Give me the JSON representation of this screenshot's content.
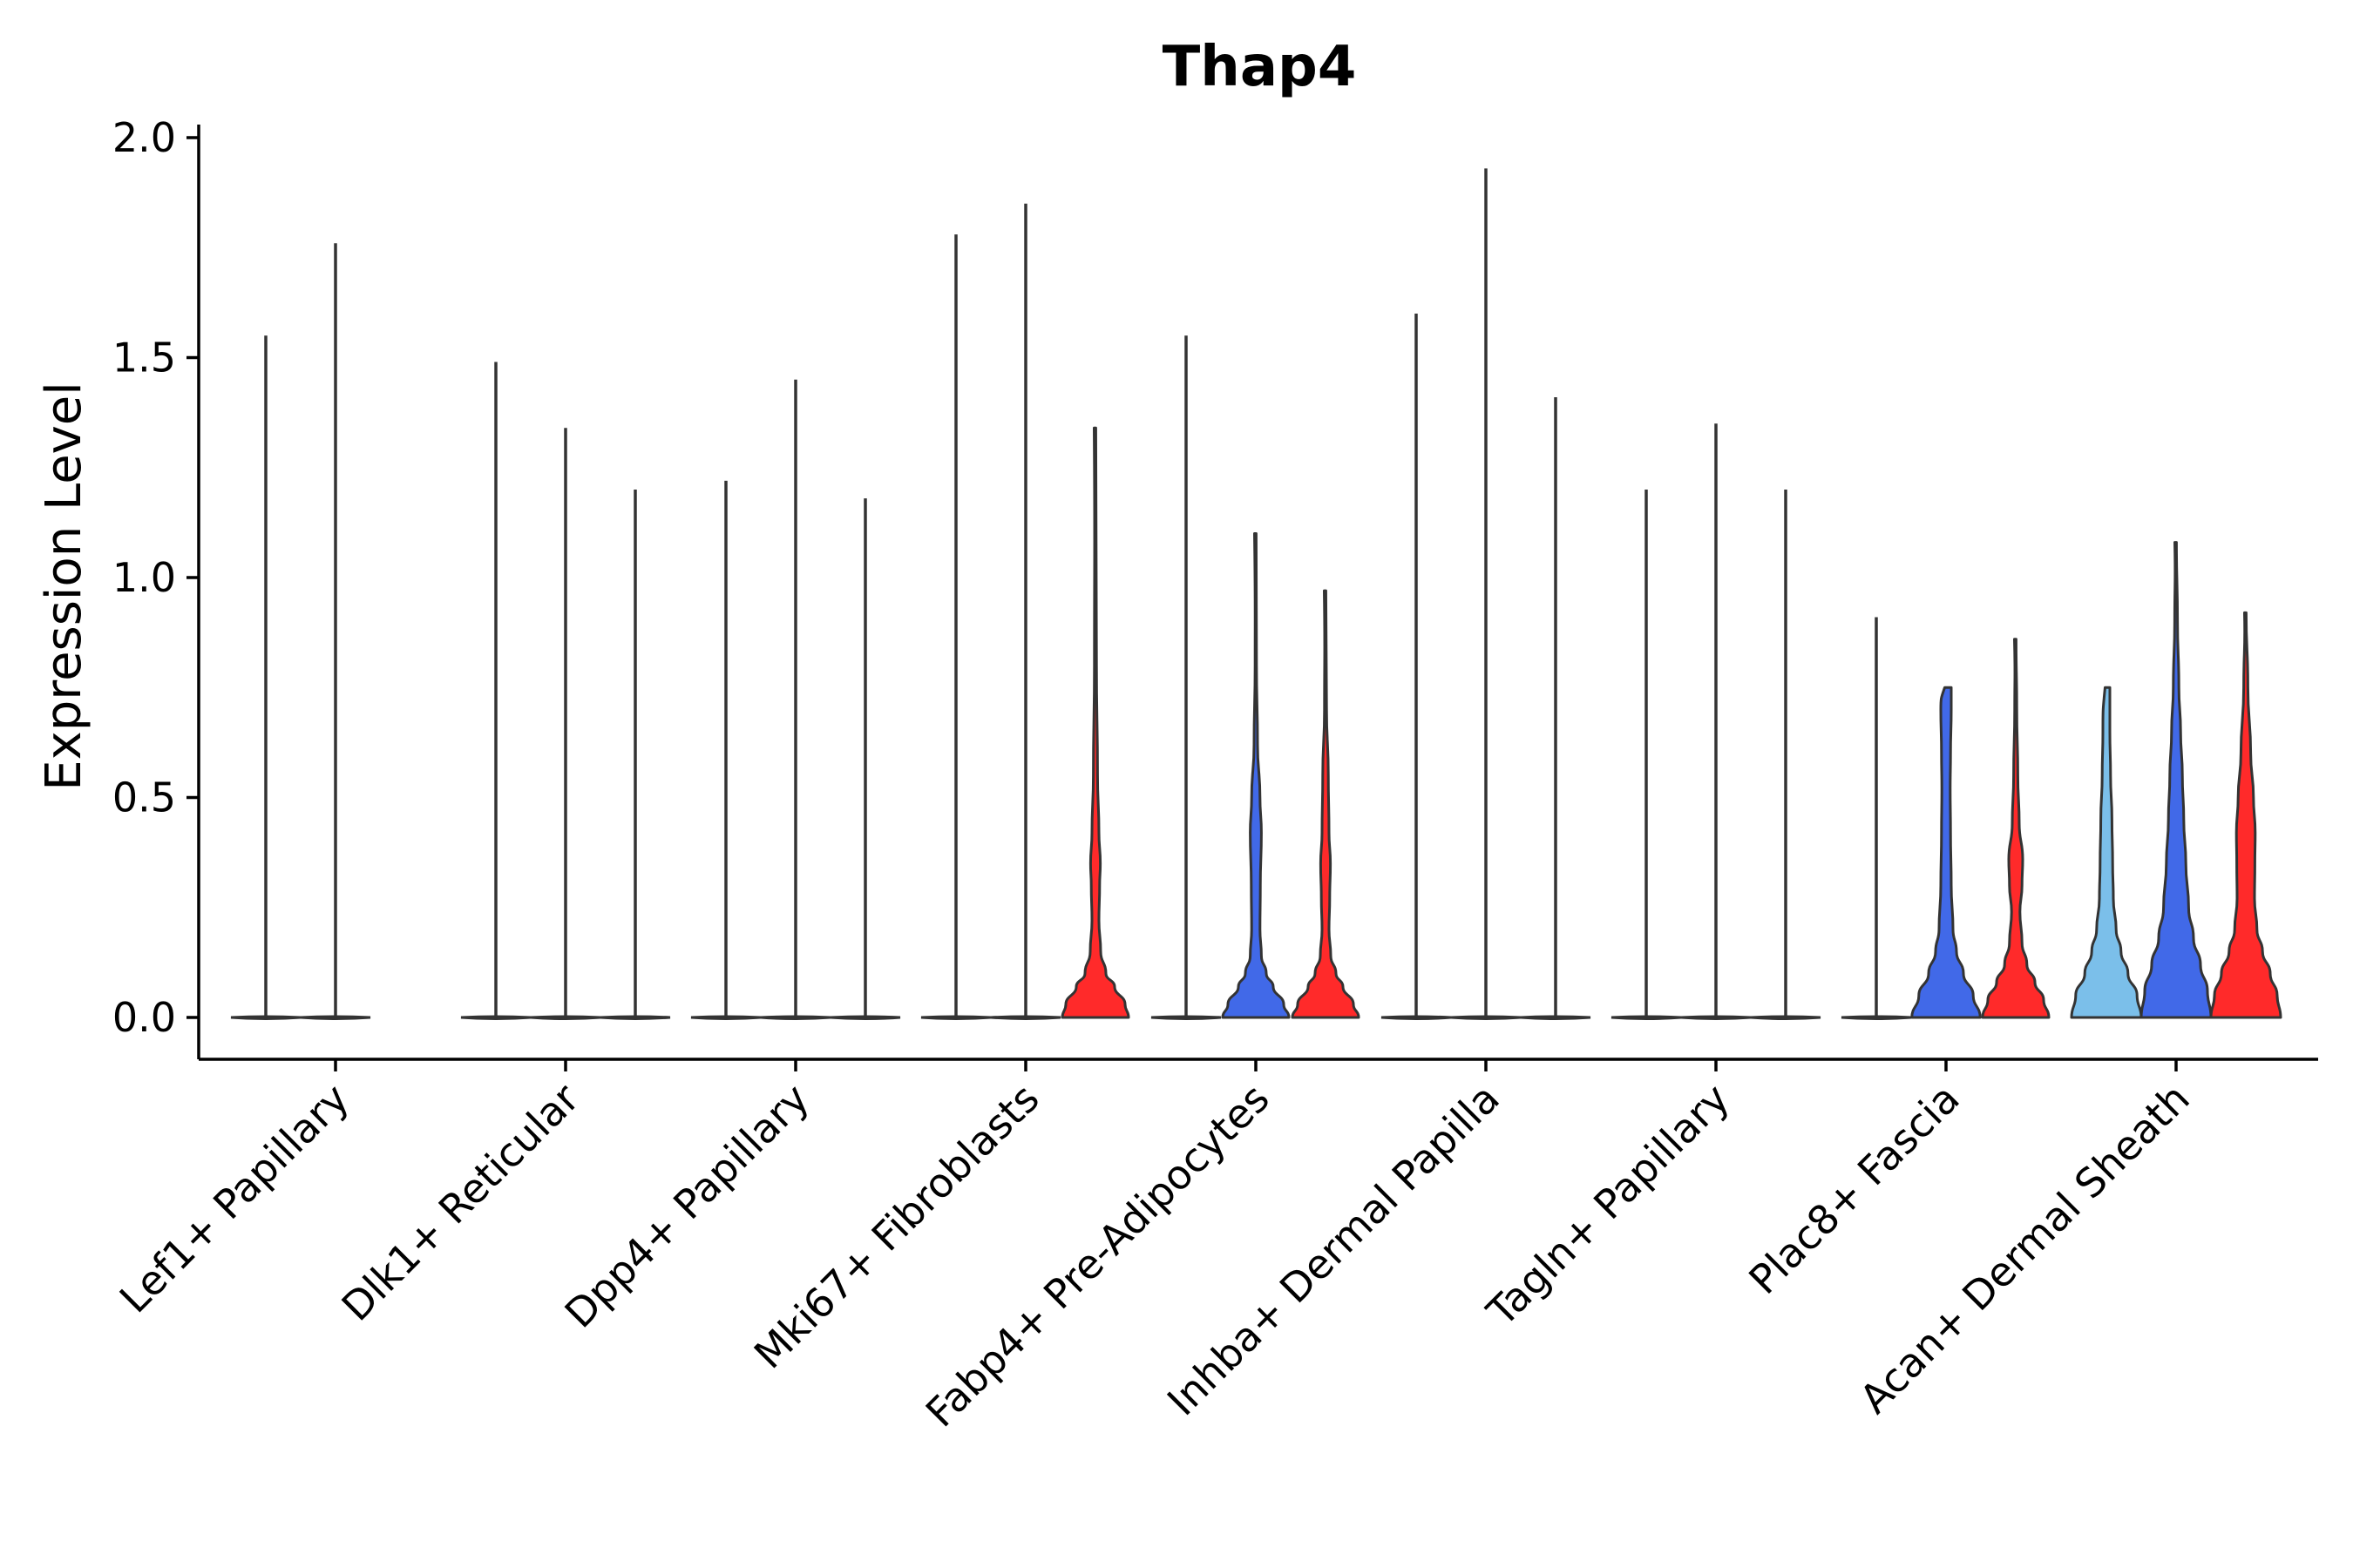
{
  "chart_data": {
    "type": "violin",
    "title": "Thap4",
    "xlabel": "",
    "ylabel": "Expression Level",
    "ylim": [
      -0.1,
      2.03
    ],
    "yticks": [
      "0.0",
      "0.5",
      "1.0",
      "1.5",
      "2.0"
    ],
    "ytick_values": [
      0,
      0.5,
      1.0,
      1.5,
      2.0
    ],
    "categories": [
      "Lef1+ Papillary",
      "Dlk1+ Reticular",
      "Dpp4+ Papillary",
      "Mki67+ Fibroblasts",
      "Fabp4+ Pre-Adipocytes",
      "Inhba+ Dermal Papilla",
      "Tagln+ Papillary",
      "Plac8+ Fascia",
      "Acan+ Dermal Sheath"
    ],
    "colors": {
      "light_blue": "#7bbfea",
      "blue": "#4169e8",
      "red": "#ff2a2a",
      "outline": "#333333"
    },
    "violins": [
      {
        "group": 0,
        "slot": 0,
        "color": "",
        "max": 1.55,
        "shape": "flat"
      },
      {
        "group": 0,
        "slot": 1,
        "color": "",
        "max": 1.76,
        "shape": "flat"
      },
      {
        "group": 1,
        "slot": 0,
        "color": "",
        "max": 1.49,
        "shape": "flat"
      },
      {
        "group": 1,
        "slot": 1,
        "color": "",
        "max": 1.34,
        "shape": "flat"
      },
      {
        "group": 1,
        "slot": 2,
        "color": "",
        "max": 1.2,
        "shape": "flat"
      },
      {
        "group": 2,
        "slot": 0,
        "color": "",
        "max": 1.22,
        "shape": "flat"
      },
      {
        "group": 2,
        "slot": 1,
        "color": "",
        "max": 1.45,
        "shape": "flat"
      },
      {
        "group": 2,
        "slot": 2,
        "color": "",
        "max": 1.18,
        "shape": "flat"
      },
      {
        "group": 3,
        "slot": 0,
        "color": "",
        "max": 1.78,
        "shape": "flat"
      },
      {
        "group": 3,
        "slot": 1,
        "color": "",
        "max": 1.85,
        "shape": "flat"
      },
      {
        "group": 3,
        "slot": 2,
        "color": "red",
        "max": 1.34,
        "shape": "red_mki"
      },
      {
        "group": 4,
        "slot": 0,
        "color": "",
        "max": 1.55,
        "shape": "flat"
      },
      {
        "group": 4,
        "slot": 1,
        "color": "blue",
        "max": 1.1,
        "shape": "blue_fab"
      },
      {
        "group": 4,
        "slot": 2,
        "color": "red",
        "max": 0.97,
        "shape": "red_fab"
      },
      {
        "group": 5,
        "slot": 0,
        "color": "",
        "max": 1.6,
        "shape": "flat"
      },
      {
        "group": 5,
        "slot": 1,
        "color": "",
        "max": 1.93,
        "shape": "flat"
      },
      {
        "group": 5,
        "slot": 2,
        "color": "",
        "max": 1.41,
        "shape": "flat"
      },
      {
        "group": 6,
        "slot": 0,
        "color": "",
        "max": 1.2,
        "shape": "flat"
      },
      {
        "group": 6,
        "slot": 1,
        "color": "",
        "max": 1.35,
        "shape": "flat"
      },
      {
        "group": 6,
        "slot": 2,
        "color": "",
        "max": 1.2,
        "shape": "flat"
      },
      {
        "group": 7,
        "slot": 0,
        "color": "",
        "max": 0.91,
        "shape": "flat"
      },
      {
        "group": 7,
        "slot": 1,
        "color": "blue",
        "max": 0.75,
        "shape": "blue_plac"
      },
      {
        "group": 7,
        "slot": 2,
        "color": "red",
        "max": 0.86,
        "shape": "red_plac"
      },
      {
        "group": 8,
        "slot": 0,
        "color": "light_blue",
        "max": 0.75,
        "shape": "lb_acan"
      },
      {
        "group": 8,
        "slot": 1,
        "color": "blue",
        "max": 1.08,
        "shape": "blue_acan"
      },
      {
        "group": 8,
        "slot": 2,
        "color": "red",
        "max": 0.92,
        "shape": "red_acan"
      }
    ]
  }
}
